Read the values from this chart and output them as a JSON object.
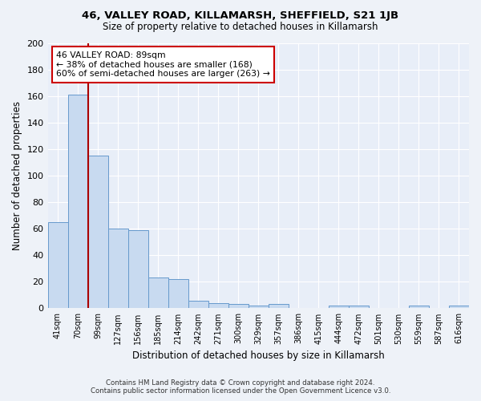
{
  "title1": "46, VALLEY ROAD, KILLAMARSH, SHEFFIELD, S21 1JB",
  "title2": "Size of property relative to detached houses in Killamarsh",
  "xlabel": "Distribution of detached houses by size in Killamarsh",
  "ylabel": "Number of detached properties",
  "categories": [
    "41sqm",
    "70sqm",
    "99sqm",
    "127sqm",
    "156sqm",
    "185sqm",
    "214sqm",
    "242sqm",
    "271sqm",
    "300sqm",
    "329sqm",
    "357sqm",
    "386sqm",
    "415sqm",
    "444sqm",
    "472sqm",
    "501sqm",
    "530sqm",
    "559sqm",
    "587sqm",
    "616sqm"
  ],
  "values": [
    65,
    161,
    115,
    60,
    59,
    23,
    22,
    6,
    4,
    3,
    2,
    3,
    0,
    0,
    2,
    2,
    0,
    0,
    2,
    0,
    2
  ],
  "bar_color": "#c8daf0",
  "bar_edge_color": "#6699cc",
  "vline_x": 1.5,
  "vline_color": "#aa0000",
  "annotation_text1": "46 VALLEY ROAD: 89sqm",
  "annotation_text2": "← 38% of detached houses are smaller (168)",
  "annotation_text3": "60% of semi-detached houses are larger (263) →",
  "ylim": [
    0,
    200
  ],
  "yticks": [
    0,
    20,
    40,
    60,
    80,
    100,
    120,
    140,
    160,
    180,
    200
  ],
  "footer1": "Contains HM Land Registry data © Crown copyright and database right 2024.",
  "footer2": "Contains public sector information licensed under the Open Government Licence v3.0.",
  "bg_color": "#eef2f8",
  "plot_bg_color": "#e8eef8",
  "grid_color": "#ffffff",
  "annotation_fg": "#000000",
  "annotation_border": "#cc0000"
}
